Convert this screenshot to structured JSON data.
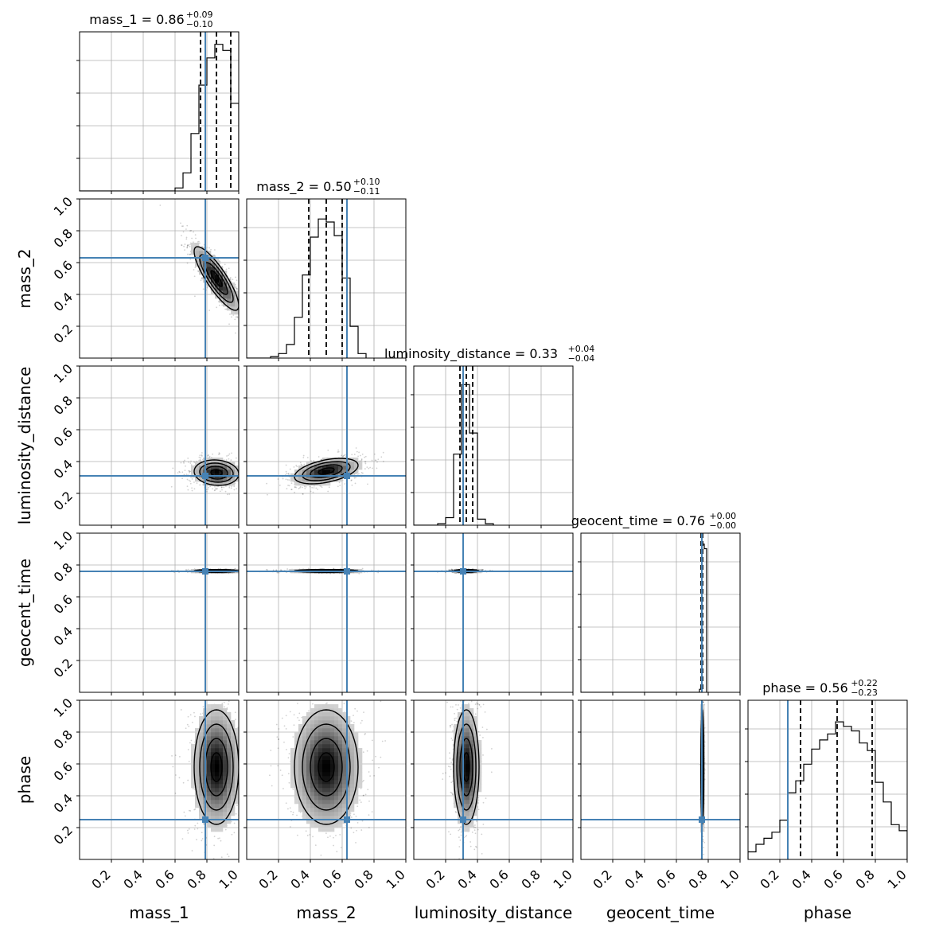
{
  "chart_data": {
    "type": "corner",
    "grid": true,
    "colors": {
      "truth": "#4682b4",
      "hist": "#000000",
      "grid": "#b0b0b0",
      "frame": "#000000"
    },
    "params": [
      {
        "name": "mass_1",
        "title_label": "mass_1 = 0.86",
        "err_plus": "+0.09",
        "err_minus": "−0.10",
        "median": 0.86,
        "q16": 0.76,
        "q84": 0.95,
        "truth": 0.79,
        "tick_labels": [
          "0.2",
          "0.4",
          "0.6",
          "0.8",
          "1.0"
        ]
      },
      {
        "name": "mass_2",
        "title_label": "mass_2 = 0.50",
        "err_plus": "+0.10",
        "err_minus": "−0.11",
        "median": 0.5,
        "q16": 0.39,
        "q84": 0.6,
        "truth": 0.63,
        "tick_labels": [
          "0.2",
          "0.4",
          "0.6",
          "0.8",
          "1.0"
        ]
      },
      {
        "name": "luminosity_distance",
        "title_label": "luminosity_distance = 0.33",
        "err_plus": "+0.04",
        "err_minus": "−0.04",
        "median": 0.33,
        "q16": 0.29,
        "q84": 0.37,
        "truth": 0.31,
        "tick_labels": [
          "0.2",
          "0.4",
          "0.6",
          "0.8",
          "1.0"
        ]
      },
      {
        "name": "geocent_time",
        "title_label": "geocent_time = 0.76",
        "err_plus": "+0.00",
        "err_minus": "−0.00",
        "median": 0.76,
        "q16": 0.755,
        "q84": 0.765,
        "truth": 0.76,
        "tick_labels": [
          "0.2",
          "0.4",
          "0.6",
          "0.8",
          "1.0"
        ]
      },
      {
        "name": "phase",
        "title_label": "phase = 0.56",
        "err_plus": "+0.22",
        "err_minus": "−0.23",
        "median": 0.56,
        "q16": 0.33,
        "q84": 0.78,
        "truth": 0.25,
        "tick_labels": [
          "0.2",
          "0.4",
          "0.6",
          "0.8",
          "1.0"
        ]
      }
    ],
    "histograms": [
      {
        "param": "mass_1",
        "bin_edges": [
          0.6,
          0.65,
          0.7,
          0.75,
          0.8,
          0.85,
          0.9,
          0.95,
          1.0
        ],
        "values": [
          0.02,
          0.12,
          0.38,
          0.7,
          0.88,
          0.97,
          0.93,
          0.58
        ]
      },
      {
        "param": "mass_2",
        "bin_edges": [
          0.15,
          0.2,
          0.25,
          0.3,
          0.35,
          0.4,
          0.45,
          0.5,
          0.55,
          0.6,
          0.65,
          0.7,
          0.75
        ],
        "values": [
          0.01,
          0.03,
          0.09,
          0.27,
          0.55,
          0.8,
          0.92,
          0.9,
          0.81,
          0.53,
          0.21,
          0.03
        ]
      },
      {
        "param": "luminosity_distance",
        "bin_edges": [
          0.15,
          0.2,
          0.25,
          0.3,
          0.35,
          0.4,
          0.45,
          0.5
        ],
        "values": [
          0.01,
          0.05,
          0.47,
          0.93,
          0.61,
          0.04,
          0.01
        ]
      },
      {
        "param": "geocent_time",
        "bin_edges": [
          0.745,
          0.76,
          0.775,
          0.79
        ],
        "values": [
          0.02,
          0.98,
          0.95
        ]
      },
      {
        "param": "phase",
        "bin_edges": [
          0.0,
          0.05,
          0.1,
          0.15,
          0.2,
          0.25,
          0.3,
          0.35,
          0.4,
          0.45,
          0.5,
          0.55,
          0.6,
          0.65,
          0.7,
          0.75,
          0.8,
          0.85,
          0.9,
          0.95,
          1.0
        ],
        "values": [
          0.05,
          0.1,
          0.14,
          0.18,
          0.26,
          0.44,
          0.52,
          0.63,
          0.73,
          0.79,
          0.83,
          0.91,
          0.88,
          0.85,
          0.77,
          0.72,
          0.51,
          0.38,
          0.23,
          0.19
        ]
      }
    ],
    "pairs": [
      {
        "x": "mass_1",
        "y": "mass_2",
        "cx": 0.86,
        "cy": 0.5,
        "sx": 0.07,
        "sy": 0.1,
        "rho": -0.85
      },
      {
        "x": "mass_1",
        "y": "luminosity_distance",
        "cx": 0.86,
        "cy": 0.33,
        "sx": 0.07,
        "sy": 0.04,
        "rho": -0.1
      },
      {
        "x": "mass_2",
        "y": "luminosity_distance",
        "cx": 0.5,
        "cy": 0.34,
        "sx": 0.1,
        "sy": 0.04,
        "rho": 0.45
      },
      {
        "x": "mass_1",
        "y": "geocent_time",
        "cx": 0.86,
        "cy": 0.763,
        "sx": 0.07,
        "sy": 0.004,
        "rho": 0.0
      },
      {
        "x": "mass_2",
        "y": "geocent_time",
        "cx": 0.5,
        "cy": 0.763,
        "sx": 0.1,
        "sy": 0.004,
        "rho": 0.0
      },
      {
        "x": "luminosity_distance",
        "y": "geocent_time",
        "cx": 0.33,
        "cy": 0.763,
        "sx": 0.04,
        "sy": 0.004,
        "rho": 0.0
      },
      {
        "x": "mass_1",
        "y": "phase",
        "cx": 0.86,
        "cy": 0.58,
        "sx": 0.07,
        "sy": 0.18,
        "rho": 0.0
      },
      {
        "x": "mass_2",
        "y": "phase",
        "cx": 0.5,
        "cy": 0.58,
        "sx": 0.1,
        "sy": 0.18,
        "rho": 0.0
      },
      {
        "x": "luminosity_distance",
        "y": "phase",
        "cx": 0.33,
        "cy": 0.58,
        "sx": 0.04,
        "sy": 0.18,
        "rho": 0.0
      },
      {
        "x": "geocent_time",
        "y": "phase",
        "cx": 0.763,
        "cy": 0.58,
        "sx": 0.004,
        "sy": 0.18,
        "rho": 0.0
      }
    ]
  }
}
